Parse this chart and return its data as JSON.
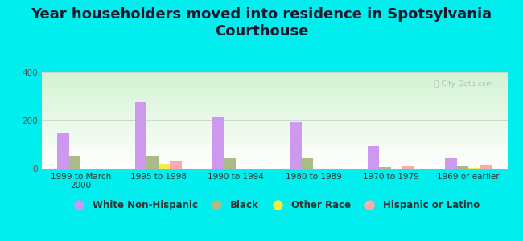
{
  "title": "Year householders moved into residence in Spotsylvania\nCourthouse",
  "categories": [
    "1999 to March\n2000",
    "1995 to 1998",
    "1990 to 1994",
    "1980 to 1989",
    "1970 to 1979",
    "1969 or earlier"
  ],
  "white_non_hispanic": [
    150,
    278,
    213,
    193,
    93,
    45
  ],
  "black": [
    55,
    55,
    45,
    45,
    8,
    10
  ],
  "other_race": [
    0,
    20,
    0,
    0,
    0,
    5
  ],
  "hispanic_or_latino": [
    0,
    30,
    0,
    0,
    10,
    15
  ],
  "colors": {
    "white_non_hispanic": "#cc99ee",
    "black": "#aabb88",
    "other_race": "#eeee44",
    "hispanic_or_latino": "#ffaaaa"
  },
  "ylim": [
    0,
    400
  ],
  "yticks": [
    0,
    200,
    400
  ],
  "background_outer": "#00eeee",
  "background_plot_top": "#f5fffa",
  "background_plot_bottom": "#cceecc",
  "bar_width": 0.15,
  "title_fontsize": 13,
  "title_color": "#1a1a2e",
  "tick_fontsize": 7.5,
  "legend_fontsize": 8.5
}
